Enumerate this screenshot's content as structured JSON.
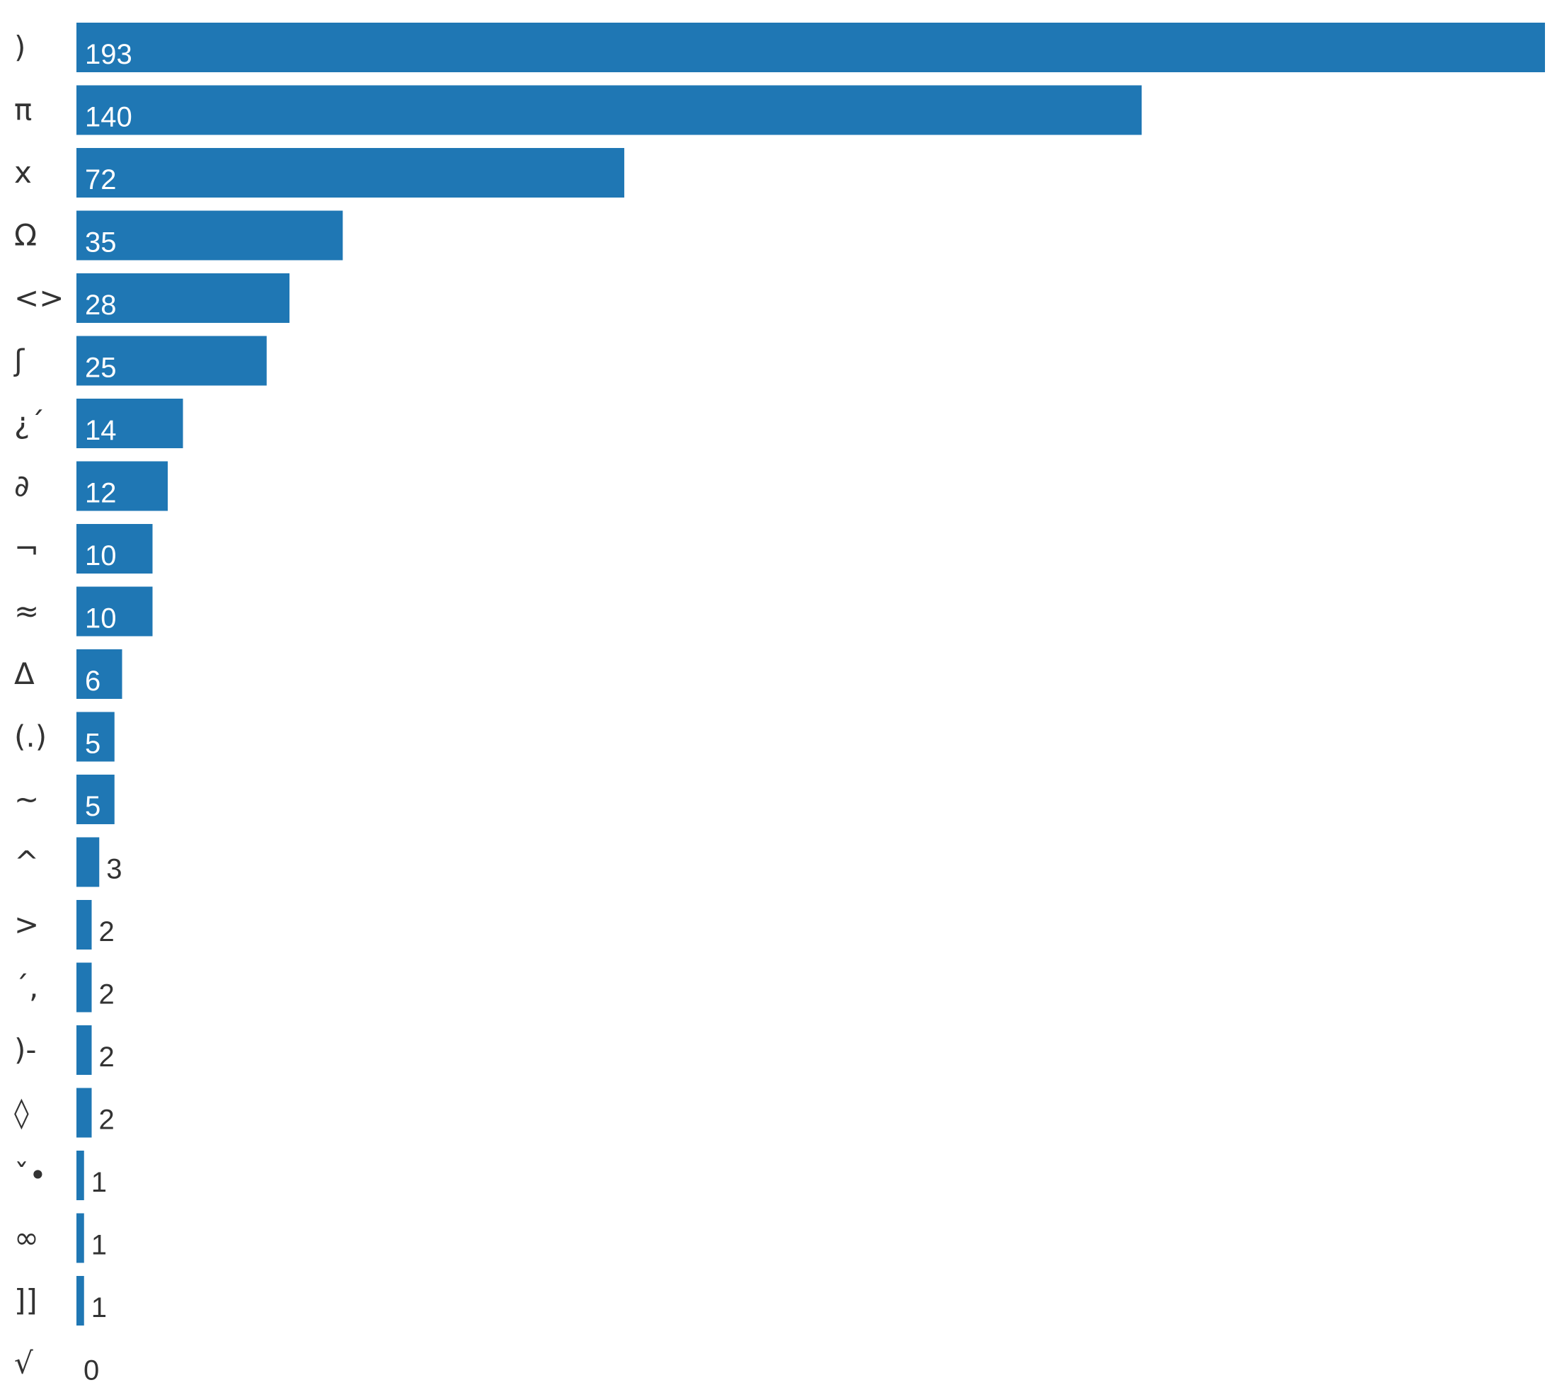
{
  "chart_data": {
    "type": "bar",
    "orientation": "horizontal",
    "categories": [
      ")",
      "π",
      "x",
      "Ω",
      "<>",
      "ʃ",
      "¿´",
      "∂",
      "¬",
      "≈",
      "Δ",
      "(.)",
      "~",
      "^",
      ">",
      "´,",
      ")-",
      "◊",
      "ˇ•",
      "∞",
      "]]",
      "√"
    ],
    "values": [
      193,
      140,
      72,
      35,
      28,
      25,
      14,
      12,
      10,
      10,
      6,
      5,
      5,
      3,
      2,
      2,
      2,
      2,
      1,
      1,
      1,
      0
    ],
    "xlim": [
      0,
      193
    ],
    "grid": false,
    "colors": {
      "bar": "#1f77b4",
      "label_inside": "#ffffff",
      "label_outside": "#333333"
    }
  }
}
